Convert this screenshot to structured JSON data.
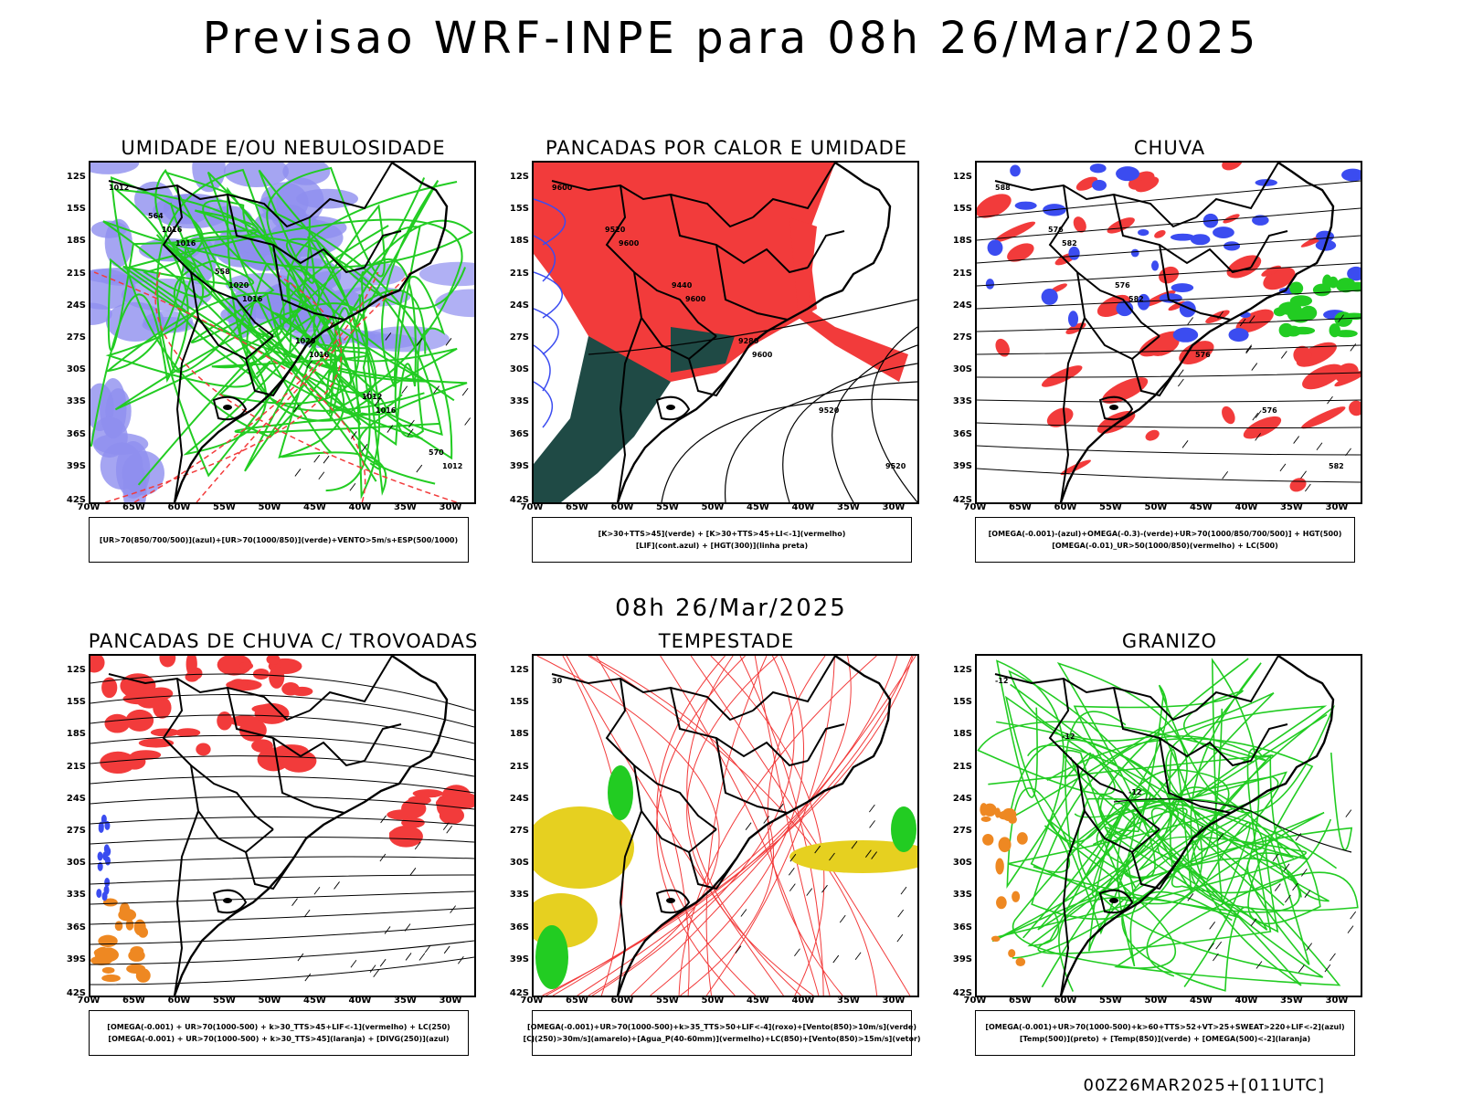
{
  "title": "Previsao WRF-INPE  para 08h 26/Mar/2025",
  "mid_title": "08h 26/Mar/2025",
  "footer": "00Z26MAR2025+[011UTC]",
  "lat_labels": [
    "12S",
    "15S",
    "18S",
    "21S",
    "24S",
    "27S",
    "30S",
    "33S",
    "36S",
    "39S",
    "42S"
  ],
  "lon_labels": [
    "70W",
    "65W",
    "60W",
    "55W",
    "50W",
    "45W",
    "40W",
    "35W",
    "30W"
  ],
  "colors": {
    "blue": "#3b4cf0",
    "lightblue": "#8f8fef",
    "green": "#22cc22",
    "red": "#f23b3b",
    "darkteal": "#1f4a45",
    "orange": "#ee8822",
    "yellow": "#e6d020"
  },
  "panels": [
    {
      "title": "UMIDADE E/OU NEBULOSIDADE",
      "legend": [
        "[UR>70(850/700/500)](azul)+[UR>70(1000/850)](verde)+VENTO>5m/s+ESP(500/1000)"
      ],
      "contour_labels": [
        "1012",
        "1016",
        "1016",
        "1016",
        "1016",
        "1012",
        "1016",
        "1020",
        "1020",
        "1012",
        "570",
        "564",
        "558"
      ]
    },
    {
      "title": "PANCADAS POR CALOR E UMIDADE",
      "legend": [
        "[K>30+TTS>45](verde) + [K>30+TTS>45+LI<-1](vermelho)",
        "[LIF](cont.azul) + [HGT(300)](linha preta)"
      ],
      "contour_labels": [
        "9600",
        "9600",
        "9600",
        "9600",
        "9520",
        "9520",
        "9520",
        "9440",
        "9280"
      ]
    },
    {
      "title": "CHUVA",
      "legend": [
        "[OMEGA(-0.001)-(azul)+OMEGA(-0.3)-(verde)+UR>70(1000/850/700/500)] + HGT(500)",
        "[OMEGA(-0.01)_UR>50(1000/850)(vermelho) + LC(500)"
      ],
      "contour_labels": [
        "588",
        "582",
        "582",
        "576",
        "576",
        "582",
        "576",
        "576"
      ]
    },
    {
      "title": "PANCADAS DE CHUVA C/ TROVOADAS",
      "legend": [
        "[OMEGA(-0.001) + UR>70(1000-500) + k>30_TTS>45+LIF<-1](vermelho) + LC(250)",
        "[OMEGA(-0.001) + UR>70(1000-500) + k>30_TTS>45](laranja) + [DIVG(250)](azul)"
      ],
      "contour_labels": []
    },
    {
      "title": "TEMPESTADE",
      "legend": [
        "[OMEGA(-0.001)+UR>70(1000-500)+k>35_TTS>50+LIF<-4](roxo)+[Vento(850)>10m/s](verde)",
        "[CJ(250)>30m/s](amarelo)+[Agua_P(40-60mm)](vermelho)+LC(850)+[Vento(850)>15m/s](vetor)"
      ],
      "contour_labels": [
        "30"
      ]
    },
    {
      "title": "GRANIZO",
      "legend": [
        "[OMEGA(-0.001)+UR>70(1000-500)+k>60+TTS>52+VT>25+SWEAT>220+LIF<-2](azul)",
        "[Temp(500)](preto) + [Temp(850)](verde) + [OMEGA(500)<-2](laranja)"
      ],
      "contour_labels": [
        "-12",
        "-12",
        "-12"
      ]
    }
  ]
}
